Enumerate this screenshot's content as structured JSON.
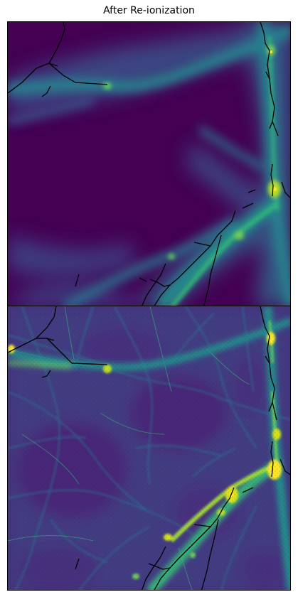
{
  "title": "After Re-ionization",
  "panels": [
    {
      "id": "top",
      "colormap": "viridis"
    },
    {
      "id": "bottom",
      "colormap": "viridis"
    }
  ],
  "colors": {
    "background_low": "#440154",
    "mid_low": "#3b528b",
    "mid": "#21918c",
    "mid_high": "#5ec962",
    "high": "#fde725",
    "filament_lines": "#000000"
  }
}
